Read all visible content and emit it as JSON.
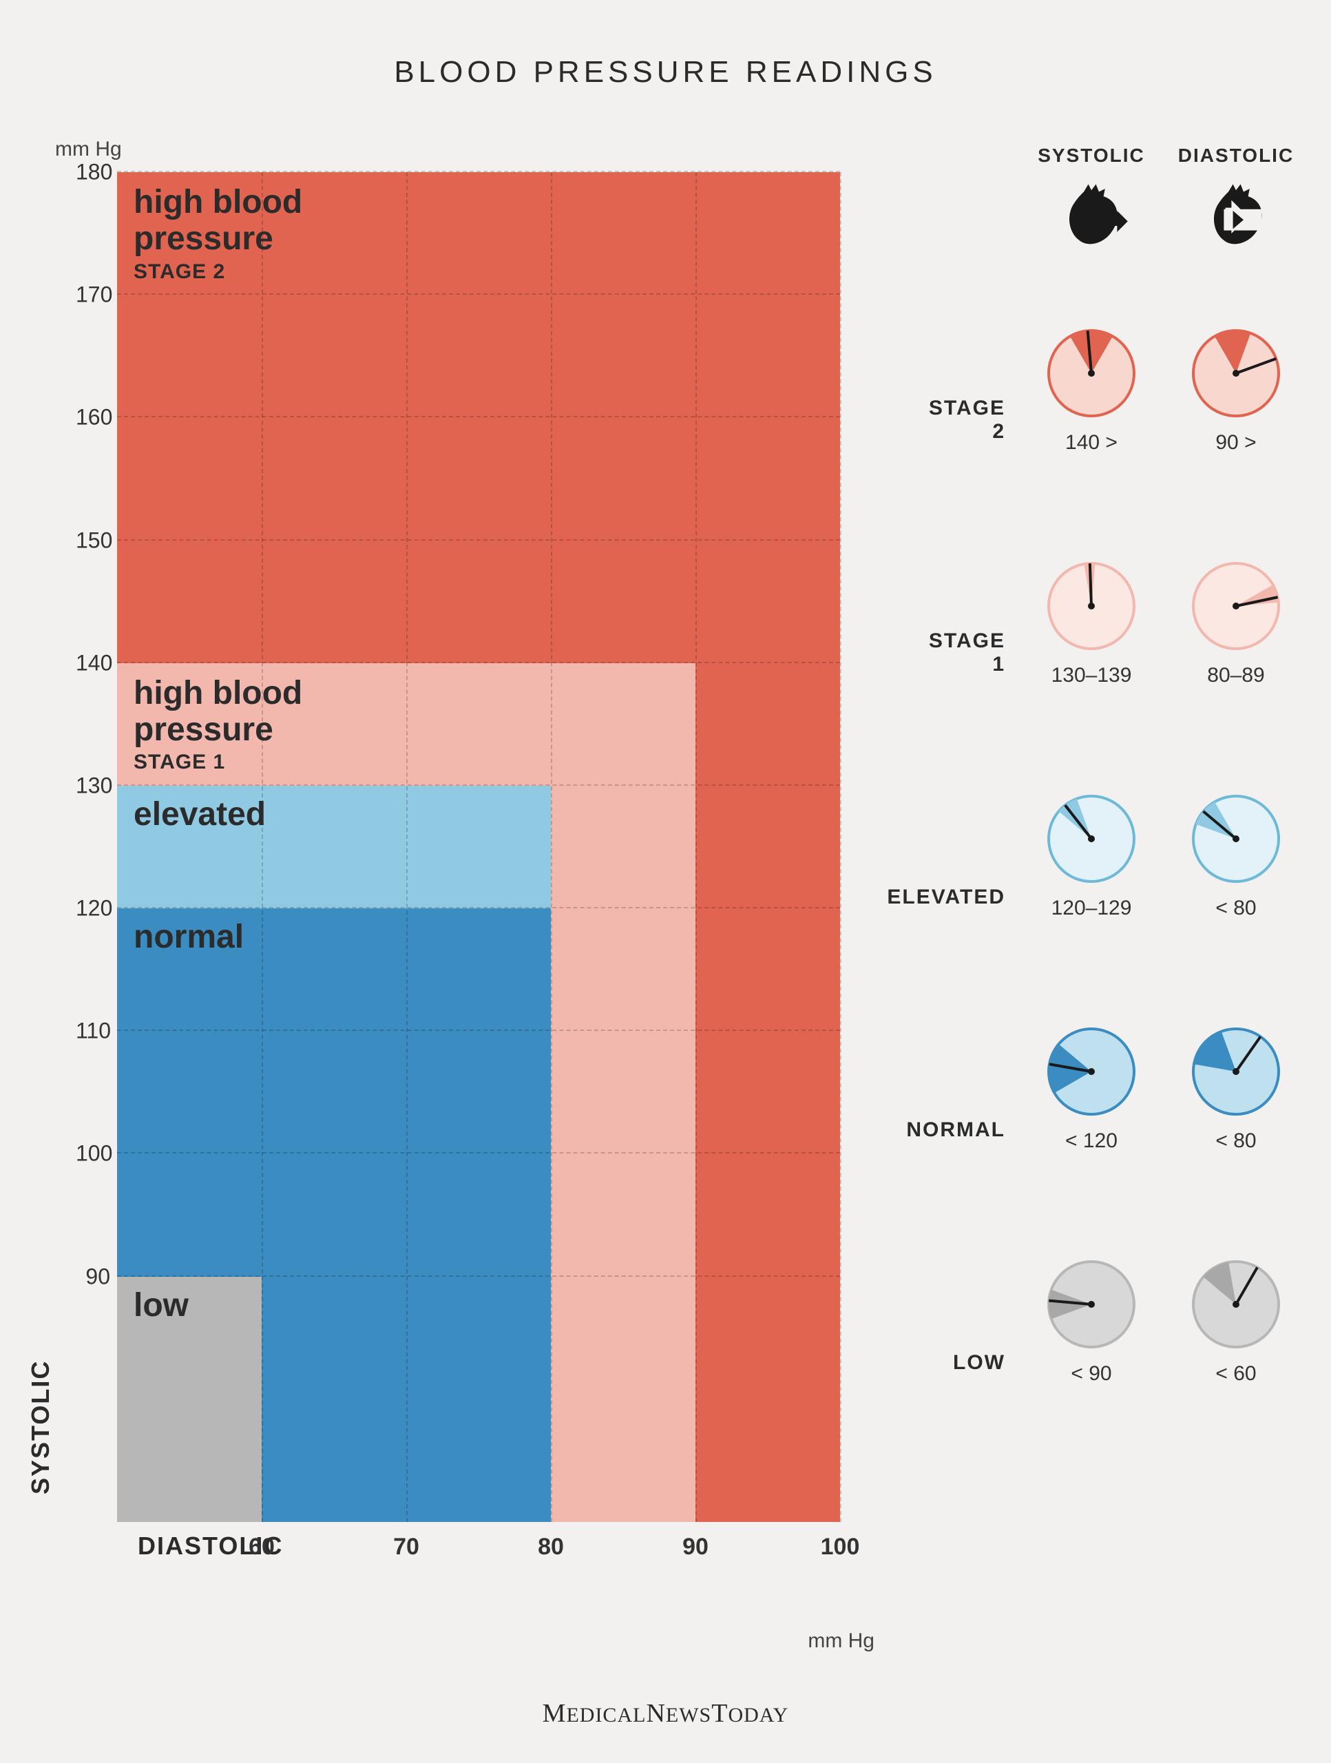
{
  "title": "BLOOD PRESSURE READINGS",
  "footer": "MedicalNewsToday",
  "axis": {
    "y_label": "SYSTOLIC",
    "x_label": "DIASTOLIC",
    "unit": "mm Hg",
    "y_min": 70,
    "y_max": 180,
    "x_min": 50,
    "x_max": 100,
    "y_ticks": [
      90,
      100,
      110,
      120,
      130,
      140,
      150,
      160,
      170,
      180
    ],
    "x_ticks": [
      60,
      70,
      80,
      90,
      100
    ]
  },
  "zones": [
    {
      "id": "stage2",
      "title_line1": "high blood",
      "title_line2": "pressure",
      "subtitle": "STAGE 2",
      "x_max": 100,
      "y_max": 180,
      "color": "#e06450"
    },
    {
      "id": "stage1",
      "title_line1": "high blood",
      "title_line2": "pressure",
      "subtitle": "STAGE 1",
      "x_max": 90,
      "y_max": 140,
      "color": "#f2b8ad"
    },
    {
      "id": "elevated",
      "title": "elevated",
      "x_max": 80,
      "y_max": 130,
      "color": "#8fc9e2"
    },
    {
      "id": "normal",
      "title": "normal",
      "x_max": 80,
      "y_max": 120,
      "color": "#3a8cc1"
    },
    {
      "id": "low",
      "title": "low",
      "x_max": 60,
      "y_max": 90,
      "color": "#b7b7b7"
    }
  ],
  "legend": {
    "col1": "SYSTOLIC",
    "col2": "DIASTOLIC",
    "rows": [
      {
        "label": "STAGE 2",
        "systolic": "140 >",
        "diastolic": "90 >",
        "ring": "#e06450",
        "fill": "#f8d7cf",
        "wedge": "#e06450"
      },
      {
        "label": "STAGE 1",
        "systolic": "130–139",
        "diastolic": "80–89",
        "ring": "#f2b8ad",
        "fill": "#fbe8e3",
        "wedge": "#f2b8ad"
      },
      {
        "label": "ELEVATED",
        "systolic": "120–129",
        "diastolic": "< 80",
        "ring": "#6fb9d8",
        "fill": "#e3f2f9",
        "wedge": "#8fc9e2"
      },
      {
        "label": "NORMAL",
        "systolic": "< 120",
        "diastolic": "< 80",
        "ring": "#3a8cc1",
        "fill": "#bfe0ef",
        "wedge": "#3a8cc1"
      },
      {
        "label": "LOW",
        "systolic": "< 90",
        "diastolic": "< 60",
        "ring": "#b7b7b7",
        "fill": "#d8d8d8",
        "wedge": "#a8a8a8"
      }
    ]
  },
  "grid_color": "rgba(0,0,0,0.18)",
  "zone_label_fontsize": 48,
  "zone_sub_fontsize": 30,
  "tick_fontsize": 32
}
